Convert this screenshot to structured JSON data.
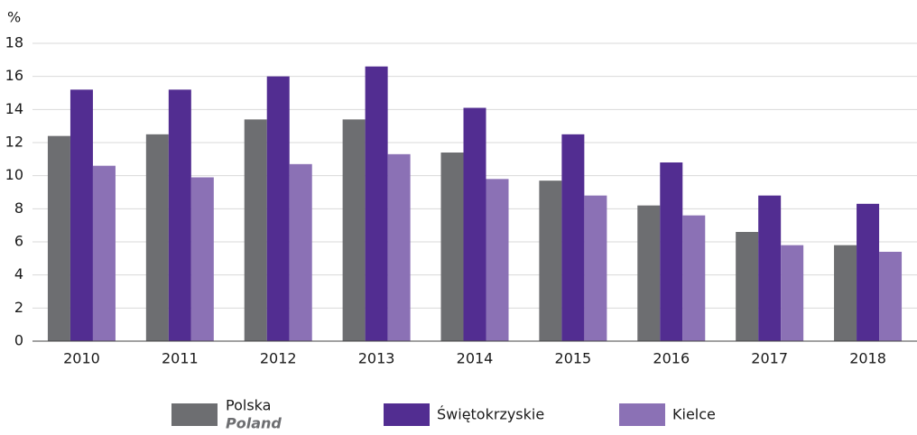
{
  "chart_data": {
    "type": "bar",
    "y_label": "%",
    "categories": [
      "2010",
      "2011",
      "2012",
      "2013",
      "2014",
      "2015",
      "2016",
      "2017",
      "2018"
    ],
    "series": [
      {
        "name": "Polska",
        "name_en": "Poland",
        "color": "#6d6e71",
        "values": [
          12.4,
          12.5,
          13.4,
          13.4,
          11.4,
          9.7,
          8.2,
          6.6,
          5.8
        ]
      },
      {
        "name": "Świętokrzyskie",
        "color": "#522d91",
        "values": [
          15.2,
          15.2,
          16.0,
          16.6,
          14.1,
          12.5,
          10.8,
          8.8,
          8.3
        ]
      },
      {
        "name": "Kielce",
        "color": "#8b71b5",
        "values": [
          10.6,
          9.9,
          10.7,
          11.3,
          9.8,
          8.8,
          7.6,
          5.8,
          5.4
        ]
      }
    ],
    "ylim": [
      0,
      18
    ],
    "yticks": [
      0,
      2,
      4,
      6,
      8,
      10,
      12,
      14,
      16,
      18
    ],
    "grid": true
  }
}
